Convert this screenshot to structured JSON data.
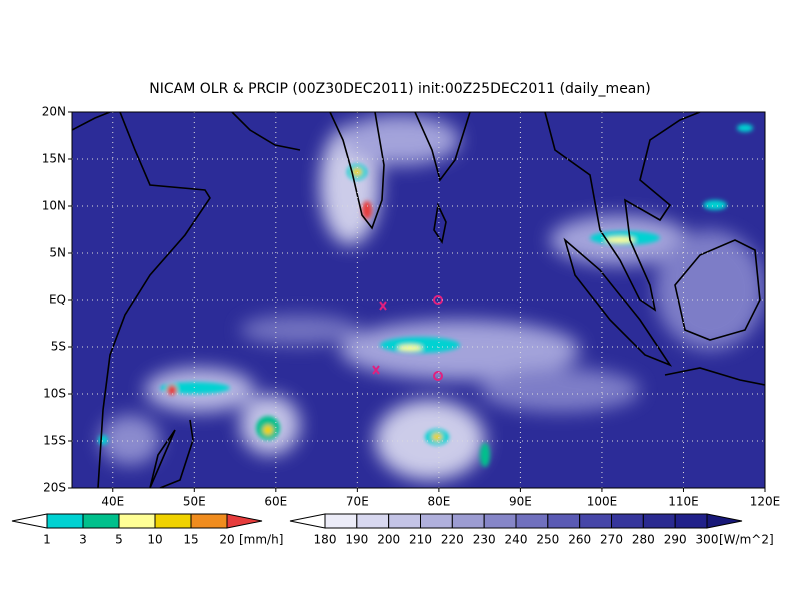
{
  "title": "NICAM OLR & PRCIP (00Z30DEC2011) init:00Z25DEC2011 (daily_mean)",
  "map": {
    "lon_range": [
      35,
      120
    ],
    "lat_range": [
      -20,
      20
    ],
    "lon_ticks": [
      {
        "value": 40,
        "label": "40E"
      },
      {
        "value": 50,
        "label": "50E"
      },
      {
        "value": 60,
        "label": "60E"
      },
      {
        "value": 70,
        "label": "70E"
      },
      {
        "value": 80,
        "label": "80E"
      },
      {
        "value": 90,
        "label": "90E"
      },
      {
        "value": 100,
        "label": "100E"
      },
      {
        "value": 110,
        "label": "110E"
      },
      {
        "value": 120,
        "label": "120E"
      }
    ],
    "lat_ticks": [
      {
        "value": 20,
        "label": "20N"
      },
      {
        "value": 15,
        "label": "15N"
      },
      {
        "value": 10,
        "label": "10N"
      },
      {
        "value": 5,
        "label": "5N"
      },
      {
        "value": 0,
        "label": "EQ"
      },
      {
        "value": -5,
        "label": "5S"
      },
      {
        "value": -10,
        "label": "10S"
      },
      {
        "value": -15,
        "label": "15S"
      },
      {
        "value": -20,
        "label": "20S"
      }
    ]
  },
  "legends": [
    {
      "unit": "[mm/h]",
      "levels": [
        1,
        3,
        5,
        10,
        15,
        20
      ],
      "colors": [
        "#ffffff",
        "#00d2d2",
        "#00c08c",
        "#ffff96",
        "#f0d200",
        "#f08c1e",
        "#e63c3c"
      ]
    },
    {
      "unit": "[W/m^2]",
      "levels": [
        180,
        190,
        200,
        210,
        220,
        230,
        240,
        250,
        260,
        270,
        280,
        290,
        300
      ],
      "colors": [
        "#ffffff",
        "#ececf8",
        "#d8d8f0",
        "#c4c4e6",
        "#b0b0dc",
        "#9c9cd2",
        "#8686c8",
        "#7070be",
        "#5a5ab4",
        "#4646a8",
        "#36369c",
        "#2a2a90",
        "#20208a",
        "#181878"
      ]
    }
  ]
}
